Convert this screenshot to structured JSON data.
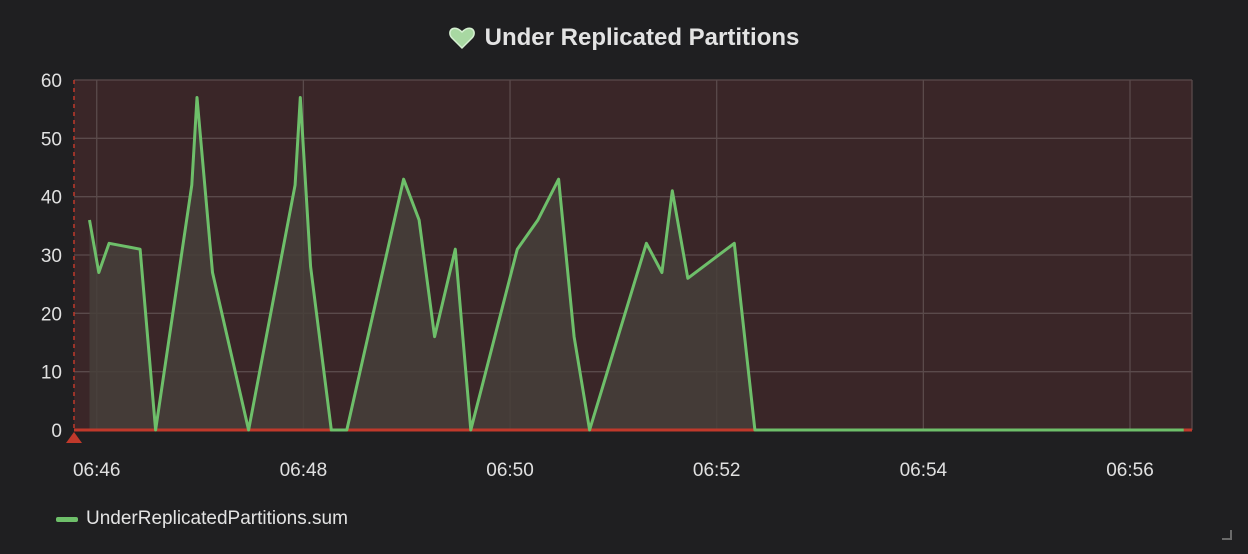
{
  "panel": {
    "title": "Under Replicated Partitions",
    "title_icon": "heart-icon",
    "colors": {
      "background": "#1f1f21",
      "plot_background": "#3a2628",
      "series_line": "#6ebf6a",
      "series_fill": "#46403a",
      "threshold_line": "#c0392b",
      "annotation": "#c0392b",
      "grid": "#5a4a4b"
    }
  },
  "chart_data": {
    "type": "area",
    "title": "Under Replicated Partitions",
    "xlabel": "",
    "ylabel": "",
    "ylim": [
      0,
      60
    ],
    "yticks": [
      "0",
      "10",
      "20",
      "30",
      "40",
      "50",
      "60"
    ],
    "xlim_minutes": [
      45.78,
      56.6
    ],
    "xticks": [
      {
        "label": "06:46",
        "minute": 46
      },
      {
        "label": "06:48",
        "minute": 48
      },
      {
        "label": "06:50",
        "minute": 50
      },
      {
        "label": "06:52",
        "minute": 52
      },
      {
        "label": "06:54",
        "minute": 54
      },
      {
        "label": "06:56",
        "minute": 56
      }
    ],
    "grid": true,
    "threshold": {
      "value": 0
    },
    "annotation_minute": 45.78,
    "series": [
      {
        "name": "UnderReplicatedPartitions.sum",
        "points": [
          [
            45.93,
            36
          ],
          [
            46.02,
            27
          ],
          [
            46.12,
            32
          ],
          [
            46.42,
            31
          ],
          [
            46.57,
            0
          ],
          [
            46.92,
            42
          ],
          [
            46.97,
            57
          ],
          [
            47.12,
            27
          ],
          [
            47.47,
            0
          ],
          [
            47.92,
            42
          ],
          [
            47.97,
            57
          ],
          [
            48.07,
            28
          ],
          [
            48.27,
            0
          ],
          [
            48.42,
            0
          ],
          [
            48.97,
            43
          ],
          [
            49.12,
            36
          ],
          [
            49.27,
            16
          ],
          [
            49.47,
            31
          ],
          [
            49.62,
            0
          ],
          [
            50.07,
            31
          ],
          [
            50.27,
            36
          ],
          [
            50.47,
            43
          ],
          [
            50.62,
            16
          ],
          [
            50.77,
            0
          ],
          [
            51.32,
            32
          ],
          [
            51.47,
            27
          ],
          [
            51.57,
            41
          ],
          [
            51.72,
            26
          ],
          [
            52.17,
            32
          ],
          [
            52.37,
            0
          ],
          [
            56.52,
            0
          ]
        ]
      }
    ]
  },
  "legend": {
    "items": [
      {
        "label": "UnderReplicatedPartitions.sum",
        "color": "#6ebf6a"
      }
    ]
  }
}
